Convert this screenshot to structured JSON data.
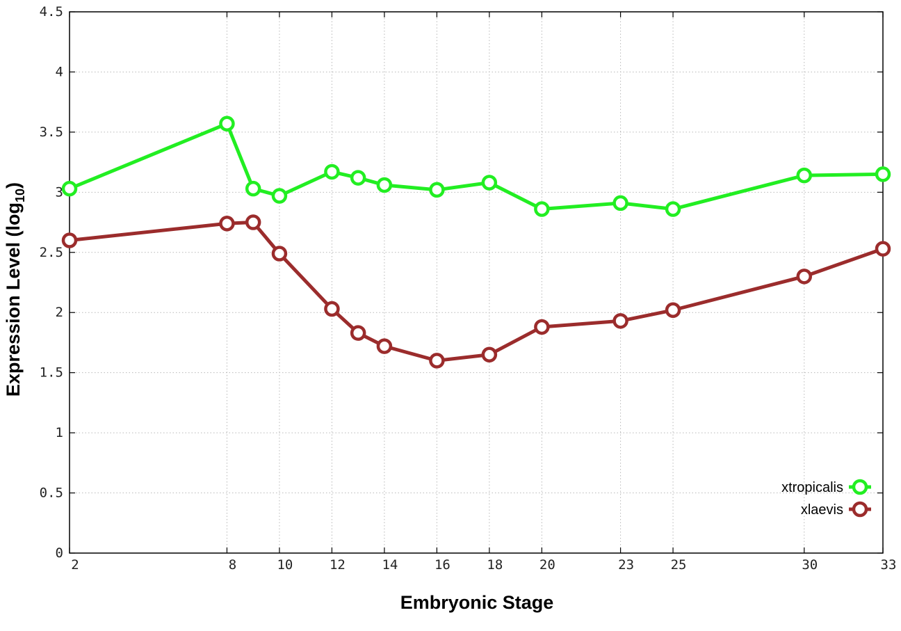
{
  "chart_data": {
    "type": "line",
    "xlabel": "Embryonic Stage",
    "ylabel_main": "Expression Level (log",
    "ylabel_sub": "10",
    "ylabel_close": ")",
    "xlim": [
      2,
      33
    ],
    "ylim": [
      0,
      4.5
    ],
    "x": [
      2,
      8,
      9,
      10,
      12,
      13,
      14,
      16,
      18,
      20,
      23,
      25,
      30,
      33
    ],
    "x_ticks": [
      2,
      8,
      10,
      12,
      14,
      16,
      18,
      20,
      23,
      25,
      30,
      33
    ],
    "y_ticks": [
      {
        "value": 0,
        "label": "0"
      },
      {
        "value": 0.5,
        "label": "0.5"
      },
      {
        "value": 1,
        "label": "1"
      },
      {
        "value": 1.5,
        "label": "1.5"
      },
      {
        "value": 2,
        "label": "2"
      },
      {
        "value": 2.5,
        "label": "2.5"
      },
      {
        "value": 3,
        "label": "3"
      },
      {
        "value": 3.5,
        "label": "3.5"
      },
      {
        "value": 4,
        "label": "4"
      },
      {
        "value": 4.5,
        "label": "4.5"
      }
    ],
    "grid": true,
    "legend_position": "bottom-right",
    "series": [
      {
        "name": "xtropicalis",
        "color": "#22ee22",
        "values": [
          3.03,
          3.57,
          3.03,
          2.97,
          3.17,
          3.12,
          3.06,
          3.02,
          3.08,
          2.86,
          2.91,
          2.86,
          3.14,
          3.15
        ]
      },
      {
        "name": "xlaevis",
        "color": "#9b2c2c",
        "values": [
          2.6,
          2.74,
          2.75,
          2.49,
          2.03,
          1.83,
          1.72,
          1.6,
          1.65,
          1.88,
          1.93,
          2.02,
          2.3,
          2.53
        ]
      }
    ]
  }
}
